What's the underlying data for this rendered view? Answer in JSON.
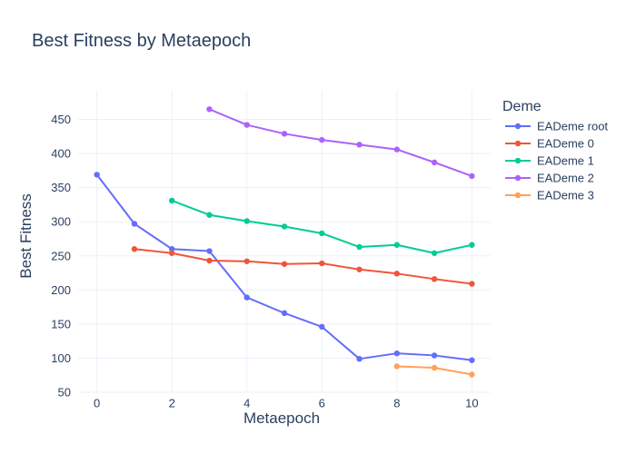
{
  "chart_data": {
    "type": "line",
    "title": "Best Fitness by Metaepoch",
    "xlabel": "Metaepoch",
    "ylabel": "Best Fitness",
    "xlim": [
      -0.5,
      10.5
    ],
    "ylim": [
      50,
      492
    ],
    "xticks": [
      0,
      2,
      4,
      6,
      8,
      10
    ],
    "yticks": [
      50,
      100,
      150,
      200,
      250,
      300,
      350,
      400,
      450
    ],
    "grid": true,
    "legend": {
      "title": "Deme",
      "placement": "right"
    },
    "series": [
      {
        "name": "EADeme root",
        "color": "#636efa",
        "x": [
          0,
          1,
          2,
          3,
          4,
          5,
          6,
          7,
          8,
          9,
          10
        ],
        "y": [
          369,
          297,
          260,
          257,
          189,
          166,
          146,
          99,
          107,
          104,
          97
        ]
      },
      {
        "name": "EADeme 0",
        "color": "#ef553b",
        "x": [
          1,
          2,
          3,
          4,
          5,
          6,
          7,
          8,
          9,
          10
        ],
        "y": [
          260,
          254,
          243,
          242,
          238,
          239,
          230,
          224,
          216,
          209
        ]
      },
      {
        "name": "EADeme 1",
        "color": "#00cc96",
        "x": [
          2,
          3,
          4,
          5,
          6,
          7,
          8,
          9,
          10
        ],
        "y": [
          331,
          310,
          301,
          293,
          283,
          263,
          266,
          254,
          266
        ]
      },
      {
        "name": "EADeme 2",
        "color": "#ab63fa",
        "x": [
          3,
          4,
          5,
          6,
          7,
          8,
          9,
          10
        ],
        "y": [
          465,
          442,
          429,
          420,
          413,
          406,
          387,
          367
        ]
      },
      {
        "name": "EADeme 3",
        "color": "#ffa15a",
        "x": [
          8,
          9,
          10
        ],
        "y": [
          88,
          86,
          76
        ]
      }
    ]
  }
}
